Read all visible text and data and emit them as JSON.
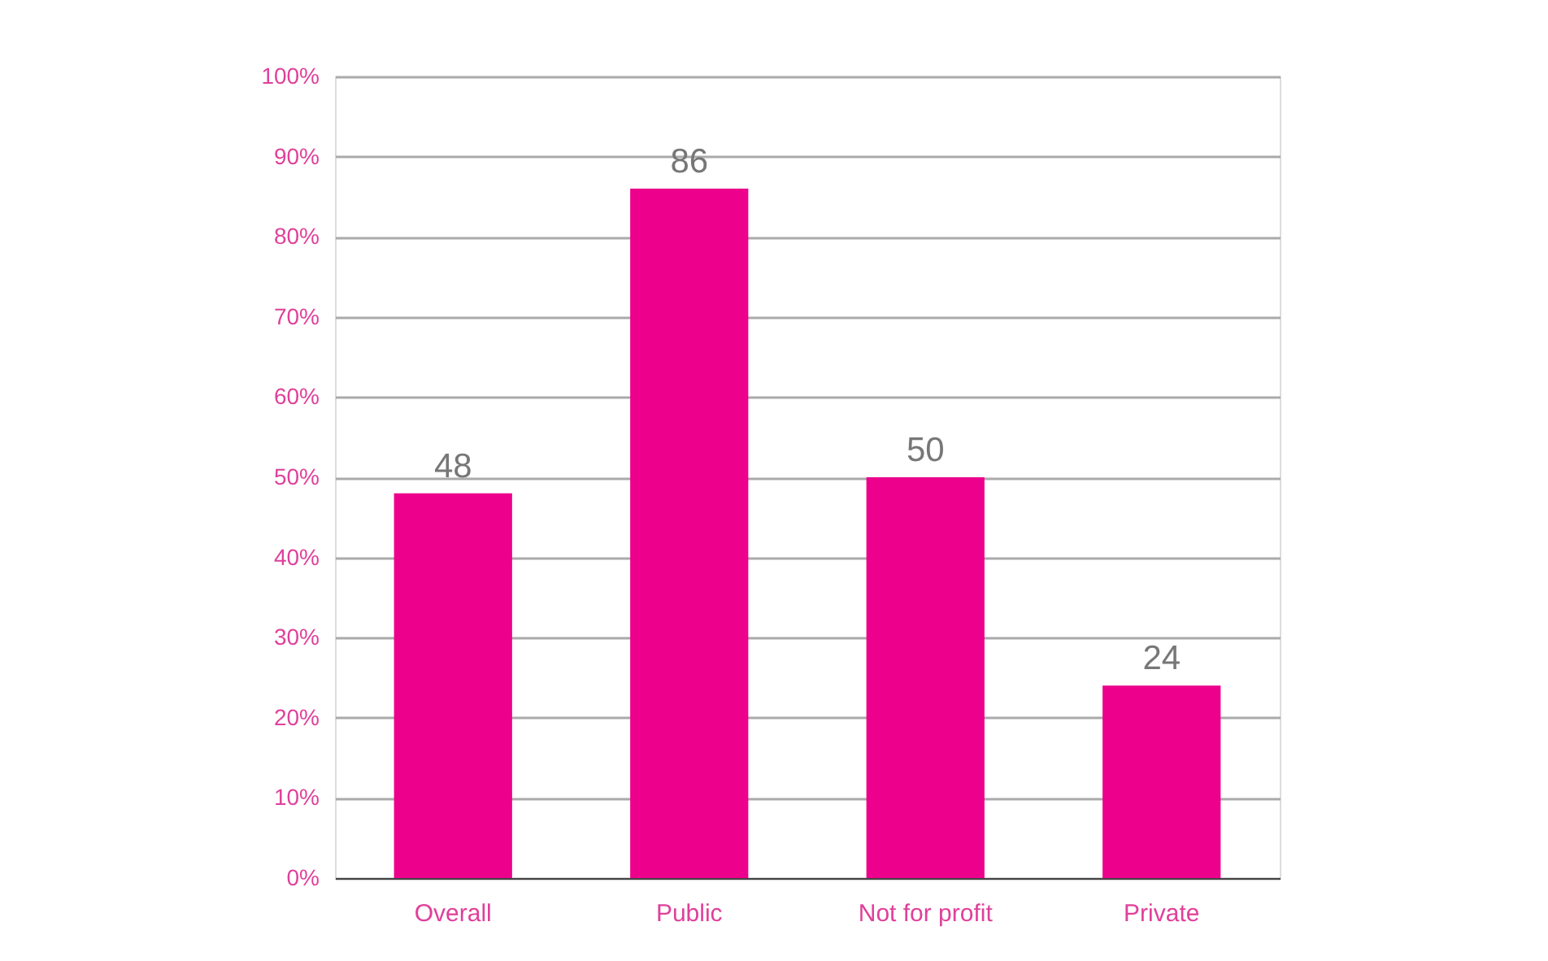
{
  "chart_data": {
    "type": "bar",
    "categories": [
      "Overall",
      "Public",
      "Not for profit",
      "Private"
    ],
    "values": [
      48,
      86,
      50,
      24
    ],
    "color": "#ec008c",
    "data_labels": true,
    "ylim": [
      0,
      100
    ],
    "yticks": [
      {
        "value": 0,
        "label": "0%"
      },
      {
        "value": 10,
        "label": "10%"
      },
      {
        "value": 20,
        "label": "20%"
      },
      {
        "value": 30,
        "label": "30%"
      },
      {
        "value": 40,
        "label": "40%"
      },
      {
        "value": 50,
        "label": "50%"
      },
      {
        "value": 60,
        "label": "60%"
      },
      {
        "value": 70,
        "label": "70%"
      },
      {
        "value": 80,
        "label": "80%"
      },
      {
        "value": 90,
        "label": "90%"
      },
      {
        "value": 100,
        "label": "100%"
      }
    ],
    "grid": "y"
  }
}
